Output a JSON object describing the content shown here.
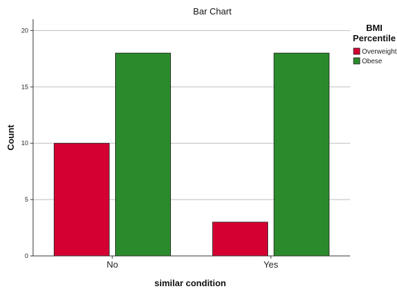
{
  "chart_data": {
    "type": "bar",
    "title": "Bar Chart",
    "xlabel": "similar condition",
    "ylabel": "Count",
    "categories": [
      "No",
      "Yes"
    ],
    "series": [
      {
        "name": "Overweight",
        "values": [
          10,
          3
        ],
        "color": "#d40032"
      },
      {
        "name": "Obese",
        "values": [
          18,
          18
        ],
        "color": "#2b8a2b"
      }
    ],
    "ylim": [
      0,
      21
    ],
    "yticks": [
      0,
      5,
      10,
      15,
      20
    ],
    "grid": true,
    "legend": {
      "title_lines": [
        "BMI",
        "Percentile"
      ],
      "position": "right"
    }
  }
}
